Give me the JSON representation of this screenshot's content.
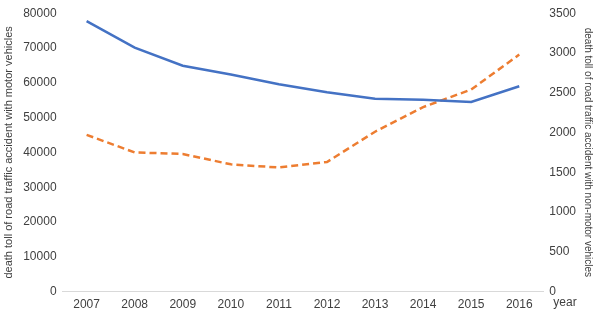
{
  "chart_data": {
    "type": "line",
    "categories": [
      "2007",
      "2008",
      "2009",
      "2010",
      "2011",
      "2012",
      "2013",
      "2014",
      "2015",
      "2016"
    ],
    "x_label": "year",
    "y_label": "death toll of road traffic accident with motor vehicles",
    "y2_label": "death toll of road traffic accident with non-motor vehicles",
    "ylim": [
      0,
      80000
    ],
    "yticks": [
      0,
      10000,
      20000,
      30000,
      40000,
      50000,
      60000,
      70000,
      80000
    ],
    "y2lim": [
      0,
      3500
    ],
    "y2ticks": [
      0,
      500,
      1000,
      1500,
      2000,
      2500,
      3000,
      3500
    ],
    "grid": false,
    "series": [
      {
        "color": "#4472c4",
        "line_style": "solid",
        "marker": "none",
        "values": [
          77700,
          70100,
          64900,
          62400,
          59600,
          57300,
          55400,
          55100,
          54500,
          59000
        ]
      },
      {
        "color": "#ed7d31",
        "line_style": "dashed",
        "marker": "none",
        "axis": "y2",
        "values": [
          1970,
          1750,
          1730,
          1600,
          1560,
          1630,
          2010,
          2320,
          2540,
          2980
        ]
      }
    ]
  }
}
